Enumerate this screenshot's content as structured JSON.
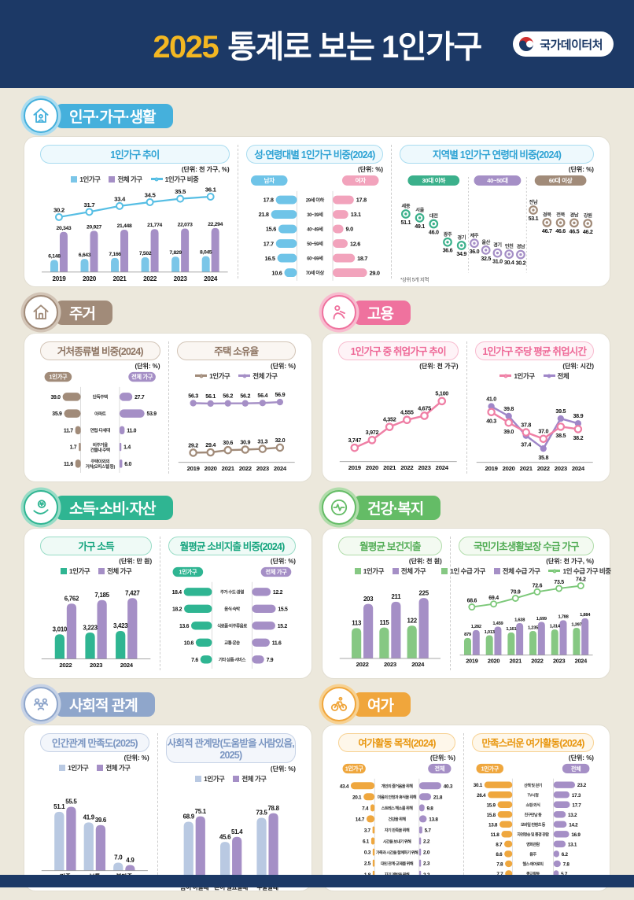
{
  "header": {
    "year": "2025",
    "title": "통계로 보는 1인가구",
    "org": "국가데이터처"
  },
  "sections": [
    {
      "title": "인구·가구·생활",
      "color": "#45b0dc",
      "light": "#a9dcf0",
      "text": "#2fa3d4",
      "tint": "#eef9fd",
      "charts": [
        0,
        1,
        2
      ]
    },
    {
      "title": "주거",
      "color": "#a18b79",
      "light": "#d2c4b6",
      "text": "#8d7462",
      "tint": "#faf6f2",
      "charts": [
        3,
        4
      ]
    },
    {
      "title": "고용",
      "color": "#ef729e",
      "light": "#f8bbcf",
      "text": "#ee6796",
      "tint": "#fef3f7",
      "charts": [
        5,
        6
      ]
    },
    {
      "title": "소득·소비·자산",
      "color": "#2fb592",
      "light": "#98dcc6",
      "text": "#17a57f",
      "tint": "#effaf6",
      "charts": [
        7,
        8
      ]
    },
    {
      "title": "건강·복지",
      "color": "#64bc66",
      "light": "#b0dcaa",
      "text": "#53ad56",
      "tint": "#f3faf1",
      "charts": [
        9,
        10
      ]
    },
    {
      "title": "사회적 관계",
      "color": "#8fa6cb",
      "light": "#c6d2e6",
      "text": "#7b96c2",
      "tint": "#f3f6fb",
      "charts": [
        11,
        12
      ]
    },
    {
      "title": "여가",
      "color": "#f0a63c",
      "light": "#f7d191",
      "text": "#e8960f",
      "tint": "#fef7ea",
      "charts": [
        13,
        14
      ]
    }
  ],
  "chart_data": [
    {
      "type": "bar-line",
      "title": "1인가구 추이",
      "unit": "(단위: 천 가구, %)",
      "legend": [
        {
          "label": "1인가구",
          "color": "#7bc6e8",
          "swatch": "sq"
        },
        {
          "label": "전체 가구",
          "color": "#a58fc6",
          "swatch": "sq"
        },
        {
          "label": "1인가구 비중",
          "color": "#56bee4",
          "swatch": "open"
        }
      ],
      "categories": [
        "2019",
        "2020",
        "2021",
        "2022",
        "2023",
        "2024"
      ],
      "series": [
        {
          "name": "1인가구",
          "color": "#7bc6e8",
          "values": [
            "6,148",
            "6,643",
            "7,166",
            "7,502",
            "7,829",
            "8,045"
          ]
        },
        {
          "name": "전체 가구",
          "color": "#a58fc6",
          "values": [
            "20,343",
            "20,927",
            "21,448",
            "21,774",
            "22,073",
            "22,294"
          ]
        }
      ],
      "line": {
        "name": "1인가구 비중",
        "color": "#56bee4",
        "values": [
          "30.2",
          "31.7",
          "33.4",
          "34.5",
          "35.5",
          "36.1"
        ]
      }
    },
    {
      "type": "butterfly",
      "title": "성·연령대별 1인가구 비중(2024)",
      "unit": "(단위: %)",
      "left": {
        "label": "남자",
        "color": "#6fc4e8",
        "values": [
          "17.8",
          "21.8",
          "15.6",
          "17.7",
          "16.5",
          "10.6"
        ]
      },
      "right": {
        "label": "여자",
        "color": "#f2a3bc",
        "values": [
          "17.8",
          "13.1",
          "9.0",
          "12.6",
          "18.7",
          "29.0"
        ]
      },
      "categories": [
        "29세 이하",
        "30~39세",
        "40~49세",
        "50~59세",
        "60~69세",
        "70세 이상"
      ]
    },
    {
      "type": "dots",
      "title": "지역별 1인가구 연령대 비중(2024)",
      "unit": "(단위: %)",
      "footnote": "*상위 5개 지역",
      "groups": [
        {
          "label": "30대 이하",
          "color": "#3bb08b",
          "items": [
            [
              "세종",
              "51.1"
            ],
            [
              "서울",
              "49.1"
            ],
            [
              "대전",
              "46.0"
            ],
            [
              "광주",
              "36.6"
            ],
            [
              "경기",
              "34.9"
            ]
          ]
        },
        {
          "label": "40~50대",
          "color": "#a58fc6",
          "items": [
            [
              "제주",
              "36.0"
            ],
            [
              "울산",
              "32.5"
            ],
            [
              "경기",
              "31.0"
            ],
            [
              "인천",
              "30.4"
            ],
            [
              "경남",
              "30.2"
            ]
          ]
        },
        {
          "label": "60대 이상",
          "color": "#a18b79",
          "items": [
            [
              "전남",
              "53.1"
            ],
            [
              "경북",
              "46.7"
            ],
            [
              "전북",
              "46.6"
            ],
            [
              "경남",
              "46.5"
            ],
            [
              "강원",
              "46.2"
            ]
          ]
        }
      ]
    },
    {
      "type": "butterfly",
      "title": "거처종류별 비중(2024)",
      "unit": "(단위: %)",
      "left": {
        "label": "1인가구",
        "color": "#a18b79",
        "values": [
          "39.0",
          "35.9",
          "11.7",
          "1.7",
          "11.6"
        ]
      },
      "right": {
        "label": "전체 가구",
        "color": "#a58fc6",
        "values": [
          "27.7",
          "53.9",
          "11.0",
          "1.4",
          "6.0"
        ]
      },
      "categories": [
        "단독주택",
        "아파트",
        "연립·다세대",
        "비주거용\n건물내 주택",
        "주택이외의\n거처(오피스텔 등)"
      ]
    },
    {
      "type": "lines",
      "title": "주택 소유율",
      "unit": "(단위: %)",
      "legend": [
        {
          "label": "1인가구",
          "color": "#a18b79",
          "swatch": "open"
        },
        {
          "label": "전체 가구",
          "color": "#a58fc6",
          "swatch": "filled"
        }
      ],
      "categories": [
        "2019",
        "2020",
        "2021",
        "2022",
        "2023",
        "2024"
      ],
      "series": [
        {
          "name": "전체 가구",
          "color": "#a58fc6",
          "marker": "filled",
          "values": [
            "56.3",
            "56.1",
            "56.2",
            "56.2",
            "56.4",
            "56.9"
          ]
        },
        {
          "name": "1인가구",
          "color": "#a18b79",
          "marker": "open",
          "values": [
            "29.2",
            "29.4",
            "30.6",
            "30.9",
            "31.3",
            "32.0"
          ]
        }
      ]
    },
    {
      "type": "lines",
      "title": "1인가구 중 취업가구 추이",
      "unit": "(단위: 천 가구)",
      "categories": [
        "2019",
        "2020",
        "2021",
        "2022",
        "2023",
        "2024"
      ],
      "series": [
        {
          "name": "취업가구",
          "color": "#ef7fa5",
          "marker": "open",
          "values": [
            "3,747",
            "3,972",
            "4,352",
            "4,555",
            "4,675",
            "5,100"
          ]
        }
      ]
    },
    {
      "type": "lines",
      "title": "1인가구 주당 평균 취업시간",
      "unit": "(단위: 시간)",
      "legend": [
        {
          "label": "1인가구",
          "color": "#ef7fa5",
          "swatch": "open"
        },
        {
          "label": "전체",
          "color": "#9f86c8",
          "swatch": "filled"
        }
      ],
      "categories": [
        "2019",
        "2020",
        "2021",
        "2022",
        "2023",
        "2024"
      ],
      "series": [
        {
          "name": "전체",
          "color": "#9f86c8",
          "marker": "filled",
          "values": [
            "41.0",
            "39.8",
            "37.4",
            "35.8",
            "39.5",
            "38.9"
          ]
        },
        {
          "name": "1인가구",
          "color": "#ef7fa5",
          "marker": "open",
          "values": [
            "40.3",
            "39.0",
            "37.8",
            "37.0",
            "38.5",
            "38.2"
          ]
        }
      ]
    },
    {
      "type": "gbars",
      "title": "가구 소득",
      "unit": "(단위: 만 원)",
      "legend": [
        {
          "label": "1인가구",
          "color": "#2fb592",
          "swatch": "sq"
        },
        {
          "label": "전체 가구",
          "color": "#a58fc6",
          "swatch": "sq"
        }
      ],
      "categories": [
        "2022",
        "2023",
        "2024"
      ],
      "series": [
        {
          "name": "1인가구",
          "color": "#2fb592",
          "values": [
            "3,010",
            "3,223",
            "3,423"
          ]
        },
        {
          "name": "전체 가구",
          "color": "#a58fc6",
          "values": [
            "6,762",
            "7,185",
            "7,427"
          ]
        }
      ]
    },
    {
      "type": "butterfly",
      "title": "월평균 소비지출 비중(2024)",
      "unit": "(단위: %)",
      "left": {
        "label": "1인가구",
        "color": "#2fb592",
        "values": [
          "18.4",
          "18.2",
          "13.6",
          "10.6",
          "7.6"
        ]
      },
      "right": {
        "label": "전체 가구",
        "color": "#a58fc6",
        "values": [
          "12.2",
          "15.5",
          "15.2",
          "11.6",
          "7.9"
        ]
      },
      "categories": [
        "주거·수도·광열",
        "음식·숙박",
        "식료품·비주류음료",
        "교통·운송",
        "기타 상품·서비스"
      ]
    },
    {
      "type": "gbars",
      "title": "월평균 보건지출",
      "unit": "(단위: 천 원)",
      "legend": [
        {
          "label": "1인가구",
          "color": "#86c883",
          "swatch": "sq"
        },
        {
          "label": "전체 가구",
          "color": "#a58fc6",
          "swatch": "sq"
        }
      ],
      "categories": [
        "2022",
        "2023",
        "2024"
      ],
      "series": [
        {
          "name": "1인가구",
          "color": "#86c883",
          "values": [
            "113",
            "115",
            "122"
          ]
        },
        {
          "name": "전체 가구",
          "color": "#a58fc6",
          "values": [
            "203",
            "211",
            "225"
          ]
        }
      ]
    },
    {
      "type": "bar-line",
      "title": "국민기초생활보장 수급 가구",
      "unit": "(단위: 천 가구, %)",
      "legend": [
        {
          "label": "1인 수급 가구",
          "color": "#86c883",
          "swatch": "sq"
        },
        {
          "label": "전체 수급 가구",
          "color": "#a58fc6",
          "swatch": "sq"
        },
        {
          "label": "1인 수급 가구 비중",
          "color": "#7cc879",
          "swatch": "open"
        }
      ],
      "categories": [
        "2019",
        "2020",
        "2021",
        "2022",
        "2023",
        "2024"
      ],
      "series": [
        {
          "name": "1인 수급 가구",
          "color": "#86c883",
          "values": [
            "879",
            "1,013",
            "1,161",
            "1,235",
            "1,314",
            "1,397"
          ]
        },
        {
          "name": "전체 수급 가구",
          "color": "#a58fc6",
          "values": [
            "1,282",
            "1,459",
            "1,638",
            "1,699",
            "1,788",
            "1,884"
          ]
        }
      ],
      "line": {
        "name": "1인 수급 가구 비중",
        "color": "#7cc879",
        "values": [
          "68.6",
          "69.4",
          "70.9",
          "72.6",
          "73.5",
          "74.2"
        ]
      }
    },
    {
      "type": "gbars",
      "title": "인간관계 만족도(2025)",
      "unit": "(단위: %)",
      "legend": [
        {
          "label": "1인가구",
          "color": "#b9c9e2",
          "swatch": "sq"
        },
        {
          "label": "전체 가구",
          "color": "#a58fc6",
          "swatch": "sq"
        }
      ],
      "categories": [
        "만족",
        "보통",
        "불만족"
      ],
      "series": [
        {
          "name": "1인가구",
          "color": "#b9c9e2",
          "values": [
            "51.1",
            "41.9",
            "7.0"
          ]
        },
        {
          "name": "전체 가구",
          "color": "#a58fc6",
          "values": [
            "55.5",
            "39.6",
            "4.9"
          ]
        }
      ]
    },
    {
      "type": "gbars",
      "title": "사회적 관계망(도움받을 사람있음, 2025)",
      "unit": "(단위: %)",
      "legend": [
        {
          "label": "1인가구",
          "color": "#b9c9e2",
          "swatch": "sq"
        },
        {
          "label": "전체 가구",
          "color": "#a58fc6",
          "swatch": "sq"
        }
      ],
      "categories": [
        "몸이 아플때",
        "돈이 필요할때",
        "우울할때"
      ],
      "series": [
        {
          "name": "1인가구",
          "color": "#b9c9e2",
          "values": [
            "68.9",
            "45.6",
            "73.5"
          ]
        },
        {
          "name": "전체 가구",
          "color": "#a58fc6",
          "values": [
            "75.1",
            "51.4",
            "78.8"
          ]
        }
      ]
    },
    {
      "type": "butterfly",
      "title": "여가활동 목적(2024)",
      "unit": "(단위: %)",
      "left": {
        "label": "1인가구",
        "color": "#efa73e",
        "values": [
          "43.4",
          "20.1",
          "7.4",
          "14.7",
          "3.7",
          "6.1",
          "0.3",
          "2.5",
          "1.8"
        ]
      },
      "right": {
        "label": "전체",
        "color": "#a58fc6",
        "values": [
          "40.3",
          "21.8",
          "9.8",
          "13.8",
          "5.7",
          "2.2",
          "2.0",
          "2.3",
          "2.2"
        ]
      },
      "categories": [
        "개인의 즐거움을 위해",
        "마음의 안정과 휴식을 위해",
        "스트레스 해소를 위해",
        "건강을 위해",
        "자기 만족을 위해",
        "시간을 보내기 위해",
        "가족과 시간을 함께하기 위해",
        "대인 관계·교제를 위해",
        "자기 계발을 위해"
      ]
    },
    {
      "type": "butterfly",
      "title": "만족스러운 여가활동(2024)",
      "unit": "(단위: %)",
      "left": {
        "label": "1인가구",
        "color": "#efa73e",
        "values": [
          "30.1",
          "26.4",
          "15.9",
          "15.8",
          "13.8",
          "11.8",
          "8.7",
          "8.6",
          "7.8",
          "7.7"
        ]
      },
      "right": {
        "label": "전체",
        "color": "#a58fc6",
        "values": [
          "23.2",
          "17.3",
          "17.7",
          "13.2",
          "14.2",
          "16.9",
          "13.1",
          "6.2",
          "7.8",
          "5.7"
        ]
      },
      "categories": [
        "산책 및 걷기",
        "TV시청",
        "쇼핑·외식",
        "친구만남 등",
        "모바일 컨텐츠 등",
        "자연명승 및 풍경 관람",
        "영화관람",
        "음주",
        "헬스·에어로빅",
        "종교활동"
      ]
    }
  ]
}
